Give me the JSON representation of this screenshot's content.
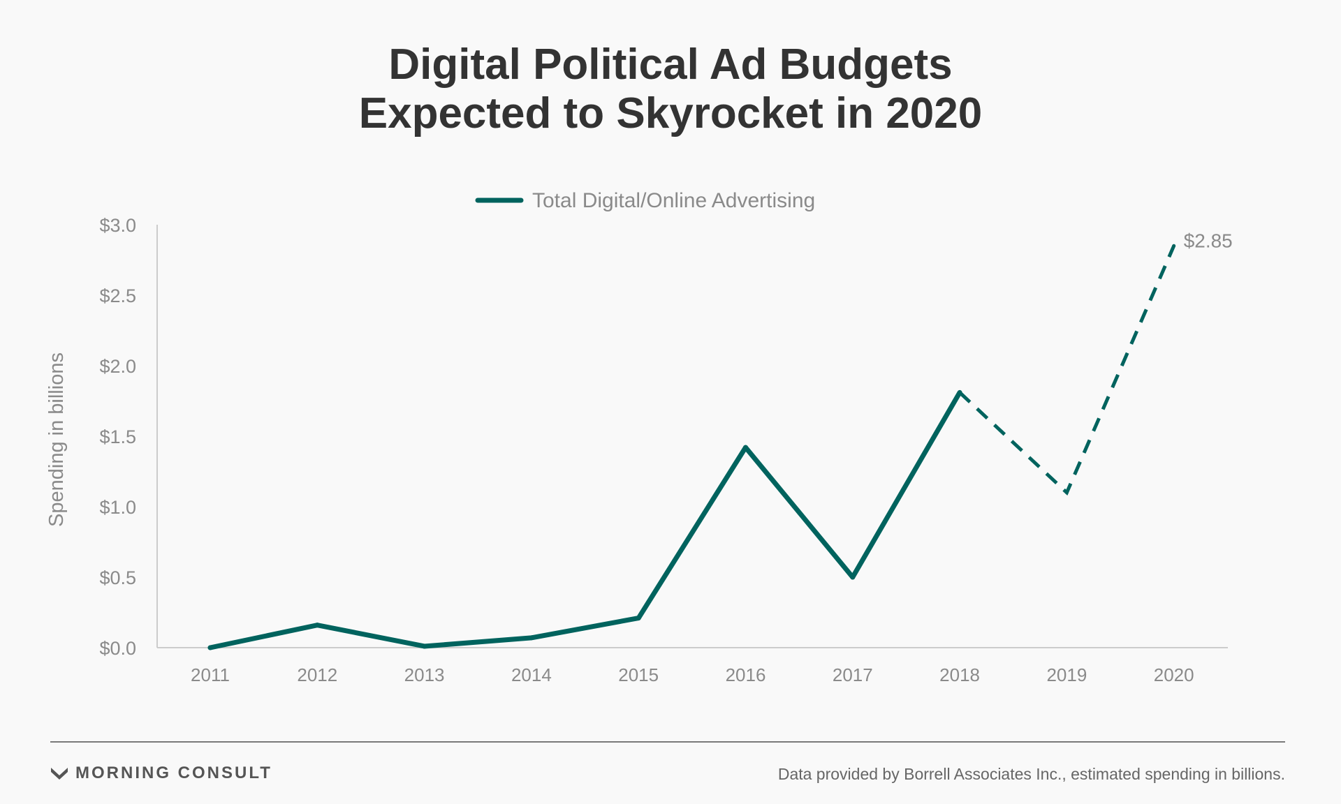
{
  "brand": {
    "name": "MORNING CONSULT",
    "logo_icon": "morning-consult-m-icon"
  },
  "source_note": "Data provided by Borrell Associates Inc., estimated spending in billions.",
  "colors": {
    "series": "#00635e",
    "text": "#333333",
    "muted": "#8a8a8a",
    "axis": "#cccccc"
  },
  "chart_data": {
    "type": "line",
    "title_lines": [
      "Digital Political Ad Budgets",
      "Expected to Skyrocket in 2020"
    ],
    "ylabel": "Spending in billions",
    "xlabel": "",
    "ylim": [
      0,
      3.0
    ],
    "y_ticks": [
      0.0,
      0.5,
      1.0,
      1.5,
      2.0,
      2.5,
      3.0
    ],
    "y_tick_labels": [
      "$0.0",
      "$0.5",
      "$1.0",
      "$1.5",
      "$2.0",
      "$2.5",
      "$3.0"
    ],
    "categories": [
      "2011",
      "2012",
      "2013",
      "2014",
      "2015",
      "2016",
      "2017",
      "2018",
      "2019",
      "2020"
    ],
    "grid": false,
    "legend": "top-center",
    "series": [
      {
        "name": "Total Digital/Online Advertising",
        "values": [
          0.0,
          0.16,
          0.01,
          0.07,
          0.21,
          1.42,
          0.5,
          1.81,
          1.1,
          2.85
        ],
        "projected_from_index": 7
      }
    ],
    "annotations": [
      {
        "category": "2020",
        "value": 2.85,
        "text": "$2.85"
      }
    ]
  }
}
